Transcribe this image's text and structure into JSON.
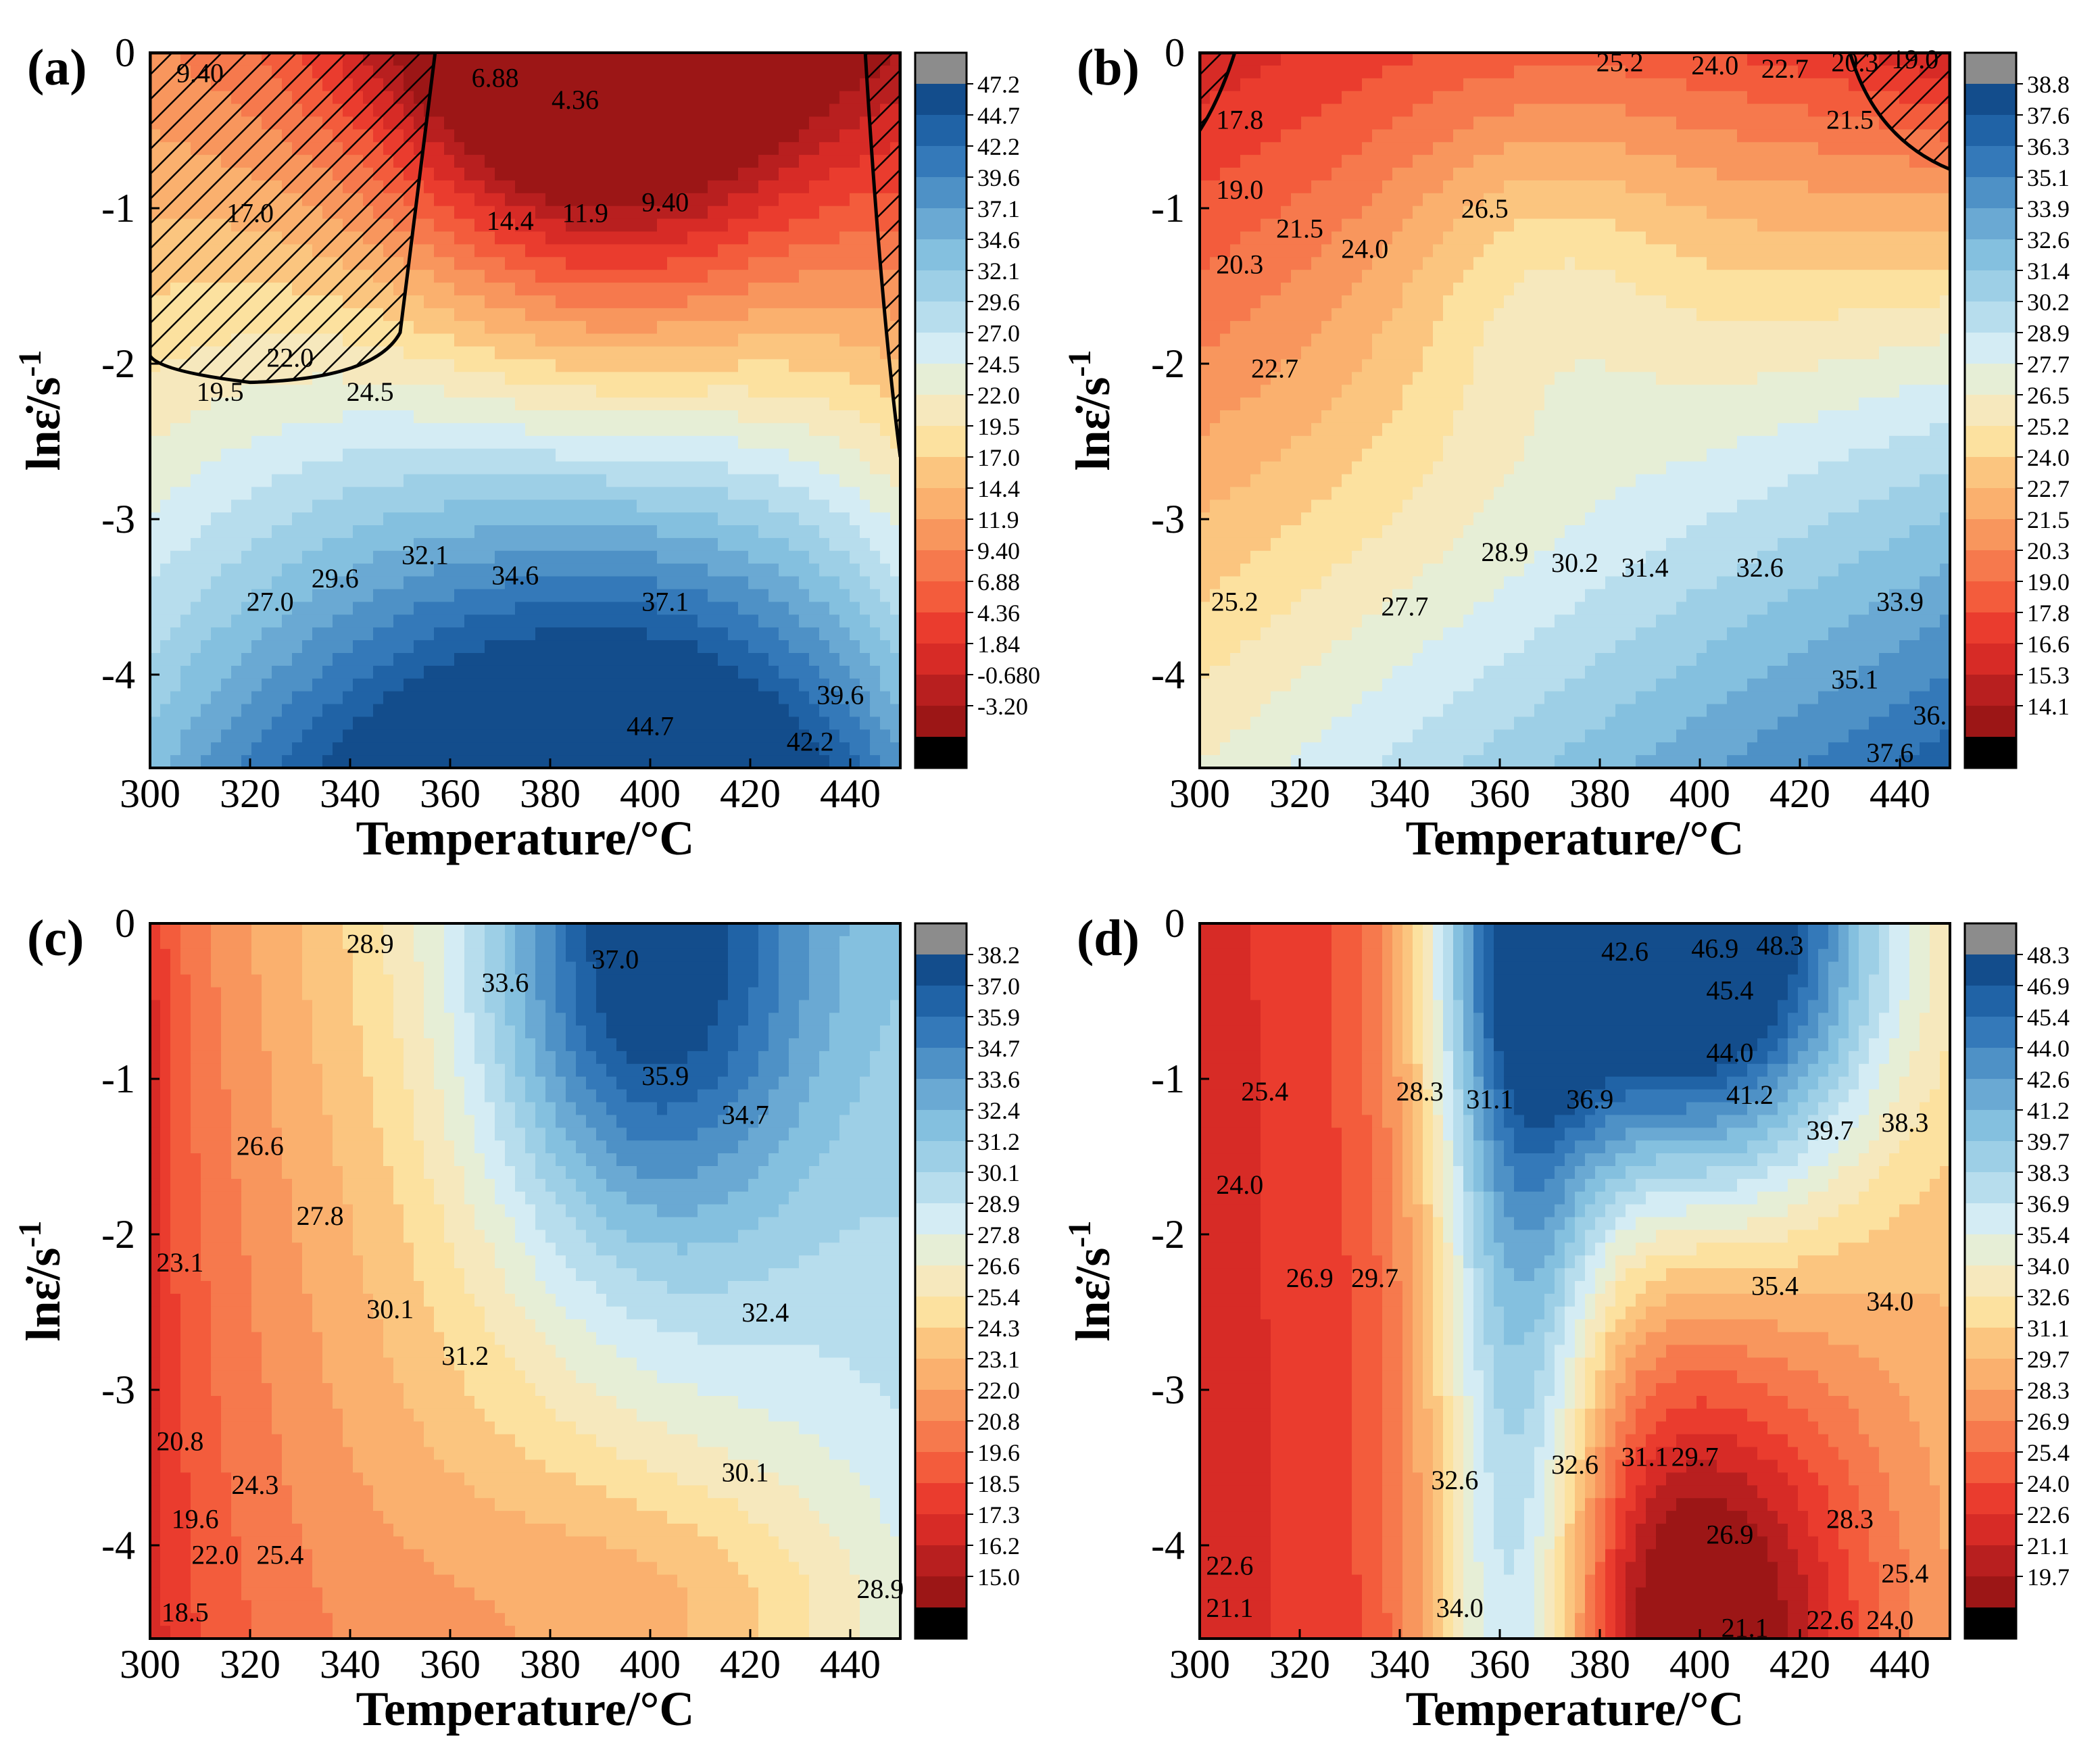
{
  "chart_data": [
    {
      "type": "heatmap",
      "label": "(a)",
      "xlabel": "Temperature/°C",
      "ylabel_main": "lnε̇/s",
      "ylabel_sup": "-1",
      "xlim": [
        300,
        450
      ],
      "ylim": [
        -4.6,
        0
      ],
      "x_ticks": [
        "300",
        "320",
        "340",
        "360",
        "380",
        "400",
        "420",
        "440"
      ],
      "y_ticks": [
        "0",
        "-1",
        "-2",
        "-3",
        "-4"
      ],
      "colorbar_levels": [
        "47.2",
        "44.7",
        "42.2",
        "39.6",
        "37.1",
        "34.6",
        "32.1",
        "29.6",
        "27.0",
        "24.5",
        "22.0",
        "19.5",
        "17.0",
        "14.4",
        "11.9",
        "9.40",
        "6.88",
        "4.36",
        "1.84",
        "-0.680",
        "-3.20"
      ],
      "contour_labels": [
        {
          "text": "9.40",
          "x": 310,
          "y": -0.15
        },
        {
          "text": "6.88",
          "x": 369,
          "y": -0.18
        },
        {
          "text": "4.36",
          "x": 385,
          "y": -0.32
        },
        {
          "text": "17.0",
          "x": 320,
          "y": -1.05
        },
        {
          "text": "14.4",
          "x": 372,
          "y": -1.1
        },
        {
          "text": "11.9",
          "x": 387,
          "y": -1.05
        },
        {
          "text": "9.40",
          "x": 403,
          "y": -0.98
        },
        {
          "text": "22.0",
          "x": 328,
          "y": -1.98
        },
        {
          "text": "19.5",
          "x": 314,
          "y": -2.2
        },
        {
          "text": "24.5",
          "x": 344,
          "y": -2.2
        },
        {
          "text": "27.0",
          "x": 324,
          "y": -3.55
        },
        {
          "text": "29.6",
          "x": 337,
          "y": -3.4
        },
        {
          "text": "32.1",
          "x": 355,
          "y": -3.25
        },
        {
          "text": "34.6",
          "x": 373,
          "y": -3.38
        },
        {
          "text": "37.1",
          "x": 403,
          "y": -3.55
        },
        {
          "text": "39.6",
          "x": 438,
          "y": -4.15
        },
        {
          "text": "44.7",
          "x": 400,
          "y": -4.35
        },
        {
          "text": "42.2",
          "x": 432,
          "y": -4.45
        }
      ],
      "instability_regions": 2
    },
    {
      "type": "heatmap",
      "label": "(b)",
      "xlabel": "Temperature/°C",
      "ylabel_main": "lnε̇/s",
      "ylabel_sup": "-1",
      "xlim": [
        300,
        450
      ],
      "ylim": [
        -4.6,
        0
      ],
      "x_ticks": [
        "300",
        "320",
        "340",
        "360",
        "380",
        "400",
        "420",
        "440"
      ],
      "y_ticks": [
        "0",
        "-1",
        "-2",
        "-3",
        "-4"
      ],
      "colorbar_levels": [
        "38.8",
        "37.6",
        "36.3",
        "35.1",
        "33.9",
        "32.6",
        "31.4",
        "30.2",
        "28.9",
        "27.7",
        "26.5",
        "25.2",
        "24.0",
        "22.7",
        "21.5",
        "20.3",
        "19.0",
        "17.8",
        "16.6",
        "15.3",
        "14.1"
      ],
      "contour_labels": [
        {
          "text": "25.2",
          "x": 384,
          "y": -0.08
        },
        {
          "text": "24.0",
          "x": 403,
          "y": -0.1
        },
        {
          "text": "22.7",
          "x": 417,
          "y": -0.12
        },
        {
          "text": "20.3",
          "x": 431,
          "y": -0.08
        },
        {
          "text": "19.0",
          "x": 443,
          "y": -0.06
        },
        {
          "text": "21.5",
          "x": 430,
          "y": -0.45
        },
        {
          "text": "17.8",
          "x": 308,
          "y": -0.45
        },
        {
          "text": "19.0",
          "x": 308,
          "y": -0.9
        },
        {
          "text": "26.5",
          "x": 357,
          "y": -1.02
        },
        {
          "text": "21.5",
          "x": 320,
          "y": -1.15
        },
        {
          "text": "24.0",
          "x": 333,
          "y": -1.28
        },
        {
          "text": "20.3",
          "x": 308,
          "y": -1.38
        },
        {
          "text": "22.7",
          "x": 315,
          "y": -2.05
        },
        {
          "text": "28.9",
          "x": 361,
          "y": -3.23
        },
        {
          "text": "30.2",
          "x": 375,
          "y": -3.3
        },
        {
          "text": "31.4",
          "x": 389,
          "y": -3.33
        },
        {
          "text": "32.6",
          "x": 412,
          "y": -3.33
        },
        {
          "text": "25.2",
          "x": 307,
          "y": -3.55
        },
        {
          "text": "27.7",
          "x": 341,
          "y": -3.58
        },
        {
          "text": "33.9",
          "x": 440,
          "y": -3.55
        },
        {
          "text": "35.1",
          "x": 431,
          "y": -4.05
        },
        {
          "text": "36.",
          "x": 446,
          "y": -4.28
        },
        {
          "text": "37.6",
          "x": 438,
          "y": -4.52
        }
      ],
      "instability_regions": 2
    },
    {
      "type": "heatmap",
      "label": "(c)",
      "xlabel": "Temperature/°C",
      "ylabel_main": "lnε̇/s",
      "ylabel_sup": "-1",
      "xlim": [
        300,
        450
      ],
      "ylim": [
        -4.6,
        0
      ],
      "x_ticks": [
        "300",
        "320",
        "340",
        "360",
        "380",
        "400",
        "420",
        "440"
      ],
      "y_ticks": [
        "0",
        "-1",
        "-2",
        "-3",
        "-4"
      ],
      "colorbar_levels": [
        "38.2",
        "37.0",
        "35.9",
        "34.7",
        "33.6",
        "32.4",
        "31.2",
        "30.1",
        "28.9",
        "27.8",
        "26.6",
        "25.4",
        "24.3",
        "23.1",
        "22.0",
        "20.8",
        "19.6",
        "18.5",
        "17.3",
        "16.2",
        "15.0"
      ],
      "contour_labels": [
        {
          "text": "28.9",
          "x": 344,
          "y": -0.15
        },
        {
          "text": "37.0",
          "x": 393,
          "y": -0.25
        },
        {
          "text": "33.6",
          "x": 371,
          "y": -0.4
        },
        {
          "text": "35.9",
          "x": 403,
          "y": -1.0
        },
        {
          "text": "34.7",
          "x": 419,
          "y": -1.25
        },
        {
          "text": "26.6",
          "x": 322,
          "y": -1.45
        },
        {
          "text": "27.8",
          "x": 334,
          "y": -1.9
        },
        {
          "text": "23.1",
          "x": 306,
          "y": -2.2
        },
        {
          "text": "30.1",
          "x": 348,
          "y": -2.5
        },
        {
          "text": "32.4",
          "x": 423,
          "y": -2.52
        },
        {
          "text": "31.2",
          "x": 363,
          "y": -2.8
        },
        {
          "text": "20.8",
          "x": 306,
          "y": -3.35
        },
        {
          "text": "24.3",
          "x": 321,
          "y": -3.63
        },
        {
          "text": "30.1",
          "x": 419,
          "y": -3.55
        },
        {
          "text": "19.6",
          "x": 309,
          "y": -3.85
        },
        {
          "text": "22.0",
          "x": 313,
          "y": -4.08
        },
        {
          "text": "25.4",
          "x": 326,
          "y": -4.08
        },
        {
          "text": "28.9",
          "x": 446,
          "y": -4.3
        },
        {
          "text": "18.5",
          "x": 307,
          "y": -4.45
        }
      ],
      "instability_regions": 0
    },
    {
      "type": "heatmap",
      "label": "(d)",
      "xlabel": "Temperature/°C",
      "ylabel_main": "lnε̇/s",
      "ylabel_sup": "-1",
      "xlim": [
        300,
        450
      ],
      "ylim": [
        -4.6,
        0
      ],
      "x_ticks": [
        "300",
        "320",
        "340",
        "360",
        "380",
        "400",
        "420",
        "440"
      ],
      "y_ticks": [
        "0",
        "-1",
        "-2",
        "-3",
        "-4"
      ],
      "colorbar_levels": [
        "48.3",
        "46.9",
        "45.4",
        "44.0",
        "42.6",
        "41.2",
        "39.7",
        "38.3",
        "36.9",
        "35.4",
        "34.0",
        "32.6",
        "31.1",
        "29.7",
        "28.3",
        "26.9",
        "25.4",
        "24.0",
        "22.6",
        "21.1",
        "19.7"
      ],
      "contour_labels": [
        {
          "text": "42.6",
          "x": 385,
          "y": -0.2
        },
        {
          "text": "46.9",
          "x": 403,
          "y": -0.18
        },
        {
          "text": "48.3",
          "x": 416,
          "y": -0.16
        },
        {
          "text": "45.4",
          "x": 406,
          "y": -0.45
        },
        {
          "text": "44.0",
          "x": 406,
          "y": -0.85
        },
        {
          "text": "25.4",
          "x": 313,
          "y": -1.1
        },
        {
          "text": "28.3",
          "x": 344,
          "y": -1.1
        },
        {
          "text": "31.1",
          "x": 358,
          "y": -1.15
        },
        {
          "text": "41.2",
          "x": 410,
          "y": -1.12
        },
        {
          "text": "36.9",
          "x": 378,
          "y": -1.15
        },
        {
          "text": "39.7",
          "x": 426,
          "y": -1.35
        },
        {
          "text": "38.3",
          "x": 441,
          "y": -1.3
        },
        {
          "text": "24.0",
          "x": 308,
          "y": -1.7
        },
        {
          "text": "26.9",
          "x": 322,
          "y": -2.3
        },
        {
          "text": "29.7",
          "x": 335,
          "y": -2.3
        },
        {
          "text": "35.4",
          "x": 415,
          "y": -2.35
        },
        {
          "text": "34.0",
          "x": 438,
          "y": -2.45
        },
        {
          "text": "32.6",
          "x": 351,
          "y": -3.6
        },
        {
          "text": "32.6",
          "x": 375,
          "y": -3.5
        },
        {
          "text": "31.1",
          "x": 389,
          "y": -3.45
        },
        {
          "text": "29.7",
          "x": 399,
          "y": -3.45
        },
        {
          "text": "26.9",
          "x": 406,
          "y": -3.95
        },
        {
          "text": "28.3",
          "x": 430,
          "y": -3.85
        },
        {
          "text": "22.6",
          "x": 306,
          "y": -4.15
        },
        {
          "text": "21.1",
          "x": 306,
          "y": -4.42
        },
        {
          "text": "34.0",
          "x": 352,
          "y": -4.42
        },
        {
          "text": "25.4",
          "x": 441,
          "y": -4.2
        },
        {
          "text": "21.1",
          "x": 409,
          "y": -4.55
        },
        {
          "text": "22.6",
          "x": 426,
          "y": -4.5
        },
        {
          "text": "24.0",
          "x": 438,
          "y": -4.5
        }
      ],
      "instability_regions": 0
    }
  ],
  "palette": [
    "#000000",
    "#9c1616",
    "#b81f1f",
    "#d72b26",
    "#ea3c2e",
    "#f35c3c",
    "#f6794d",
    "#f8965d",
    "#fab06e",
    "#fbc57f",
    "#fce19f",
    "#f6e8bd",
    "#e6eed6",
    "#d4ecf4",
    "#b7dded",
    "#9dcfe6",
    "#84c0df",
    "#6aa9d3",
    "#4e91c6",
    "#3479b9",
    "#2063a6",
    "#134d8c",
    "#8c8c8c"
  ]
}
